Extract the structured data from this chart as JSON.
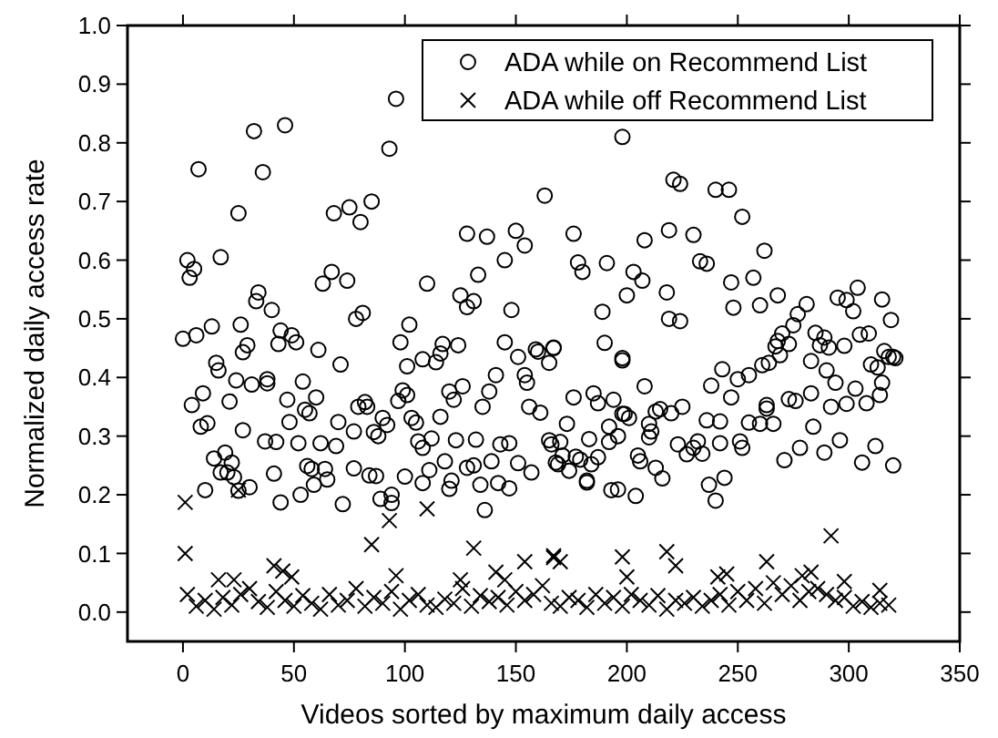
{
  "chart_data": {
    "type": "scatter",
    "xlabel": "Videos sorted by maximum daily access",
    "ylabel": "Normalized daily access rate",
    "xlim": [
      -25,
      350
    ],
    "ylim": [
      -0.05,
      1.0
    ],
    "xticks": [
      0,
      50,
      100,
      150,
      200,
      250,
      300,
      350
    ],
    "yticks": [
      {
        "value": 0,
        "label": "0.0"
      },
      {
        "value": 0.1,
        "label": "0.1"
      },
      {
        "value": 0.2,
        "label": "0.2"
      },
      {
        "value": 0.3,
        "label": "0.3"
      },
      {
        "value": 0.4,
        "label": "0.4"
      },
      {
        "value": 0.5,
        "label": "0.5"
      },
      {
        "value": 0.6,
        "label": "0.6"
      },
      {
        "value": 0.7,
        "label": "0.7"
      },
      {
        "value": 0.8,
        "label": "0.8"
      },
      {
        "value": 0.9,
        "label": "0.9"
      },
      {
        "value": 1.0,
        "label": "1.0"
      }
    ],
    "grid": false,
    "legend": "top right",
    "series": [
      {
        "name": "ADA while on Recommend List",
        "color": "#000000",
        "marker": "circle",
        "x": [
          96,
          32,
          46,
          93,
          7,
          36,
          25,
          68,
          75,
          80,
          85,
          163,
          2,
          5,
          3,
          17,
          128,
          137,
          150,
          154,
          145,
          67,
          63,
          74,
          110,
          133,
          125,
          131,
          128,
          148,
          34,
          33,
          40,
          81,
          78,
          0,
          6,
          13,
          26,
          29,
          27,
          44,
          49,
          51,
          43,
          61,
          102,
          98,
          117,
          124,
          145,
          151,
          167,
          159,
          198,
          221,
          224,
          240,
          246,
          252,
          176,
          208,
          219,
          230,
          233,
          236,
          262,
          178,
          180,
          191,
          203,
          207,
          200,
          218,
          247,
          257,
          268,
          260,
          248,
          219,
          224,
          189,
          281,
          277,
          295,
          299,
          304,
          302,
          315,
          319,
          275,
          270,
          268,
          273,
          285,
          289,
          291,
          287,
          298,
          305,
          309,
          316,
          320,
          167,
          190,
          198,
          15,
          16,
          4,
          9,
          21,
          8,
          11,
          24,
          31,
          38,
          38,
          27,
          14,
          19,
          22,
          17,
          20,
          23,
          30,
          10,
          25,
          37,
          42,
          41,
          44,
          47,
          48,
          54,
          55,
          57,
          60,
          52,
          62,
          69,
          70,
          77,
          79,
          82,
          83,
          56,
          58,
          64,
          65,
          59,
          53,
          72,
          77,
          84,
          87,
          71,
          86,
          88,
          90,
          92,
          97,
          99,
          101,
          103,
          105,
          100,
          89,
          94,
          94,
          101,
          108,
          114,
          116,
          106,
          112,
          108,
          111,
          108,
          116,
          118,
          120,
          122,
          126,
          123,
          120,
          121,
          128,
          131,
          132,
          135,
          136,
          134,
          138,
          141,
          139,
          143,
          147,
          142,
          147,
          151,
          154,
          155,
          157,
          156,
          161,
          165,
          166,
          169,
          165,
          160,
          198,
          176,
          185,
          187,
          194,
          199,
          201,
          173,
          170,
          171,
          168,
          177,
          179,
          174,
          183,
          187,
          184,
          182,
          182,
          192,
          192,
          196,
          193,
          196,
          204,
          198,
          208,
          205,
          206,
          210,
          211,
          210,
          215,
          213,
          220,
          225,
          213,
          216,
          223,
          227,
          230,
          234,
          232,
          236,
          242,
          242,
          237,
          240,
          244,
          238,
          243,
          247,
          250,
          255,
          261,
          264,
          269,
          267,
          251,
          252,
          255,
          260,
          263,
          266,
          263,
          273,
          276,
          271,
          278,
          283,
          284,
          283,
          289,
          290,
          292,
          294,
          296,
          299,
          303,
          306,
          308,
          310,
          312,
          314,
          313,
          315,
          318,
          320,
          321
        ],
        "values": [
          0.875,
          0.82,
          0.83,
          0.79,
          0.755,
          0.75,
          0.68,
          0.68,
          0.69,
          0.665,
          0.7,
          0.71,
          0.6,
          0.585,
          0.57,
          0.605,
          0.645,
          0.64,
          0.65,
          0.625,
          0.6,
          0.58,
          0.56,
          0.565,
          0.56,
          0.575,
          0.54,
          0.53,
          0.52,
          0.515,
          0.545,
          0.53,
          0.515,
          0.51,
          0.5,
          0.466,
          0.472,
          0.487,
          0.49,
          0.455,
          0.443,
          0.48,
          0.472,
          0.46,
          0.457,
          0.447,
          0.49,
          0.46,
          0.457,
          0.455,
          0.46,
          0.435,
          0.45,
          0.448,
          0.81,
          0.737,
          0.73,
          0.72,
          0.72,
          0.674,
          0.645,
          0.634,
          0.651,
          0.643,
          0.598,
          0.594,
          0.616,
          0.596,
          0.58,
          0.595,
          0.58,
          0.565,
          0.54,
          0.545,
          0.562,
          0.57,
          0.54,
          0.523,
          0.519,
          0.5,
          0.496,
          0.512,
          0.525,
          0.508,
          0.536,
          0.532,
          0.553,
          0.513,
          0.533,
          0.498,
          0.489,
          0.475,
          0.462,
          0.457,
          0.476,
          0.468,
          0.451,
          0.455,
          0.454,
          0.473,
          0.475,
          0.445,
          0.435,
          0.451,
          0.459,
          0.433,
          0.425,
          0.412,
          0.353,
          0.373,
          0.359,
          0.316,
          0.322,
          0.395,
          0.388,
          0.397,
          0.39,
          0.31,
          0.262,
          0.272,
          0.255,
          0.238,
          0.238,
          0.23,
          0.213,
          0.208,
          0.207,
          0.291,
          0.29,
          0.236,
          0.187,
          0.362,
          0.324,
          0.393,
          0.345,
          0.339,
          0.366,
          0.288,
          0.288,
          0.283,
          0.324,
          0.308,
          0.35,
          0.358,
          0.35,
          0.249,
          0.244,
          0.244,
          0.226,
          0.217,
          0.2,
          0.184,
          0.245,
          0.233,
          0.232,
          0.422,
          0.307,
          0.3,
          0.331,
          0.319,
          0.36,
          0.378,
          0.37,
          0.331,
          0.323,
          0.231,
          0.193,
          0.2,
          0.186,
          0.419,
          0.431,
          0.426,
          0.441,
          0.291,
          0.296,
          0.28,
          0.242,
          0.22,
          0.333,
          0.257,
          0.376,
          0.362,
          0.385,
          0.293,
          0.21,
          0.224,
          0.246,
          0.25,
          0.294,
          0.35,
          0.174,
          0.217,
          0.376,
          0.404,
          0.257,
          0.286,
          0.288,
          0.22,
          0.211,
          0.254,
          0.404,
          0.391,
          0.238,
          0.35,
          0.34,
          0.293,
          0.286,
          0.252,
          0.425,
          0.444,
          0.429,
          0.366,
          0.373,
          0.356,
          0.362,
          0.338,
          0.331,
          0.321,
          0.29,
          0.267,
          0.255,
          0.265,
          0.26,
          0.241,
          0.295,
          0.264,
          0.252,
          0.224,
          0.221,
          0.316,
          0.29,
          0.3,
          0.208,
          0.209,
          0.198,
          0.338,
          0.385,
          0.267,
          0.257,
          0.298,
          0.308,
          0.321,
          0.346,
          0.342,
          0.339,
          0.35,
          0.246,
          0.228,
          0.286,
          0.269,
          0.28,
          0.27,
          0.291,
          0.327,
          0.325,
          0.288,
          0.217,
          0.19,
          0.229,
          0.386,
          0.414,
          0.366,
          0.397,
          0.404,
          0.421,
          0.425,
          0.438,
          0.453,
          0.291,
          0.28,
          0.323,
          0.321,
          0.347,
          0.321,
          0.353,
          0.363,
          0.36,
          0.259,
          0.28,
          0.373,
          0.316,
          0.428,
          0.272,
          0.412,
          0.35,
          0.391,
          0.293,
          0.355,
          0.381,
          0.255,
          0.356,
          0.422,
          0.283,
          0.37,
          0.417,
          0.391,
          0.435,
          0.25,
          0.433
        ]
      },
      {
        "name": "ADA while off Recommend List",
        "color": "#000000",
        "marker": "cross",
        "x": [
          1,
          1,
          25,
          85,
          93,
          110,
          131,
          41,
          45,
          49,
          96,
          125,
          141,
          154,
          167,
          145,
          16,
          23,
          167,
          170,
          198,
          200,
          218,
          222,
          263,
          292,
          241,
          245,
          279,
          283,
          298,
          314,
          2,
          6,
          10,
          14,
          18,
          22,
          26,
          30,
          34,
          38,
          42,
          46,
          50,
          54,
          58,
          62,
          66,
          70,
          74,
          78,
          82,
          86,
          90,
          94,
          98,
          102,
          106,
          110,
          114,
          118,
          122,
          126,
          130,
          134,
          138,
          142,
          146,
          150,
          154,
          158,
          162,
          166,
          170,
          174,
          178,
          182,
          186,
          190,
          194,
          198,
          202,
          206,
          210,
          214,
          218,
          222,
          226,
          230,
          234,
          238,
          242,
          246,
          250,
          254,
          258,
          262,
          266,
          270,
          274,
          278,
          282,
          286,
          290,
          294,
          298,
          302,
          306,
          310,
          314,
          318
        ],
        "values": [
          0.187,
          0.1,
          0.208,
          0.115,
          0.156,
          0.176,
          0.109,
          0.079,
          0.07,
          0.06,
          0.062,
          0.055,
          0.068,
          0.086,
          0.093,
          0.055,
          0.055,
          0.055,
          0.096,
          0.086,
          0.094,
          0.06,
          0.103,
          0.079,
          0.086,
          0.13,
          0.06,
          0.065,
          0.062,
          0.068,
          0.052,
          0.037,
          0.03,
          0.01,
          0.02,
          0.005,
          0.025,
          0.012,
          0.03,
          0.04,
          0.018,
          0.008,
          0.035,
          0.02,
          0.01,
          0.028,
          0.015,
          0.005,
          0.03,
          0.012,
          0.02,
          0.04,
          0.01,
          0.025,
          0.015,
          0.035,
          0.005,
          0.02,
          0.03,
          0.012,
          0.008,
          0.022,
          0.015,
          0.04,
          0.01,
          0.028,
          0.018,
          0.025,
          0.012,
          0.035,
          0.02,
          0.03,
          0.045,
          0.015,
          0.01,
          0.025,
          0.02,
          0.008,
          0.03,
          0.015,
          0.025,
          0.01,
          0.03,
          0.02,
          0.012,
          0.028,
          0.005,
          0.02,
          0.015,
          0.025,
          0.01,
          0.02,
          0.03,
          0.012,
          0.035,
          0.02,
          0.04,
          0.015,
          0.05,
          0.03,
          0.045,
          0.02,
          0.035,
          0.04,
          0.03,
          0.02,
          0.025,
          0.01,
          0.018,
          0.008,
          0.015,
          0.012
        ]
      }
    ]
  }
}
